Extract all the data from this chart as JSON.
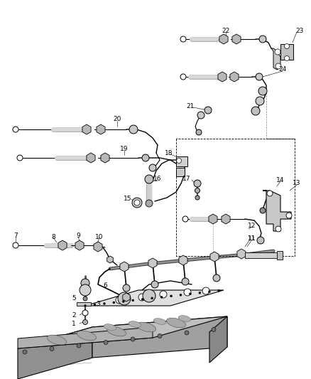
{
  "bg_color": "#ffffff",
  "line_color": "#000000",
  "fig_width": 4.38,
  "fig_height": 5.33,
  "dpi": 100,
  "gray_light": "#d8d8d8",
  "gray_med": "#b0b0b0",
  "gray_dark": "#888888",
  "lw_thin": 0.5,
  "lw_med": 0.8,
  "lw_thick": 1.4,
  "label_fs": 6.5,
  "leader_lw": 0.4,
  "component_lw": 0.7
}
